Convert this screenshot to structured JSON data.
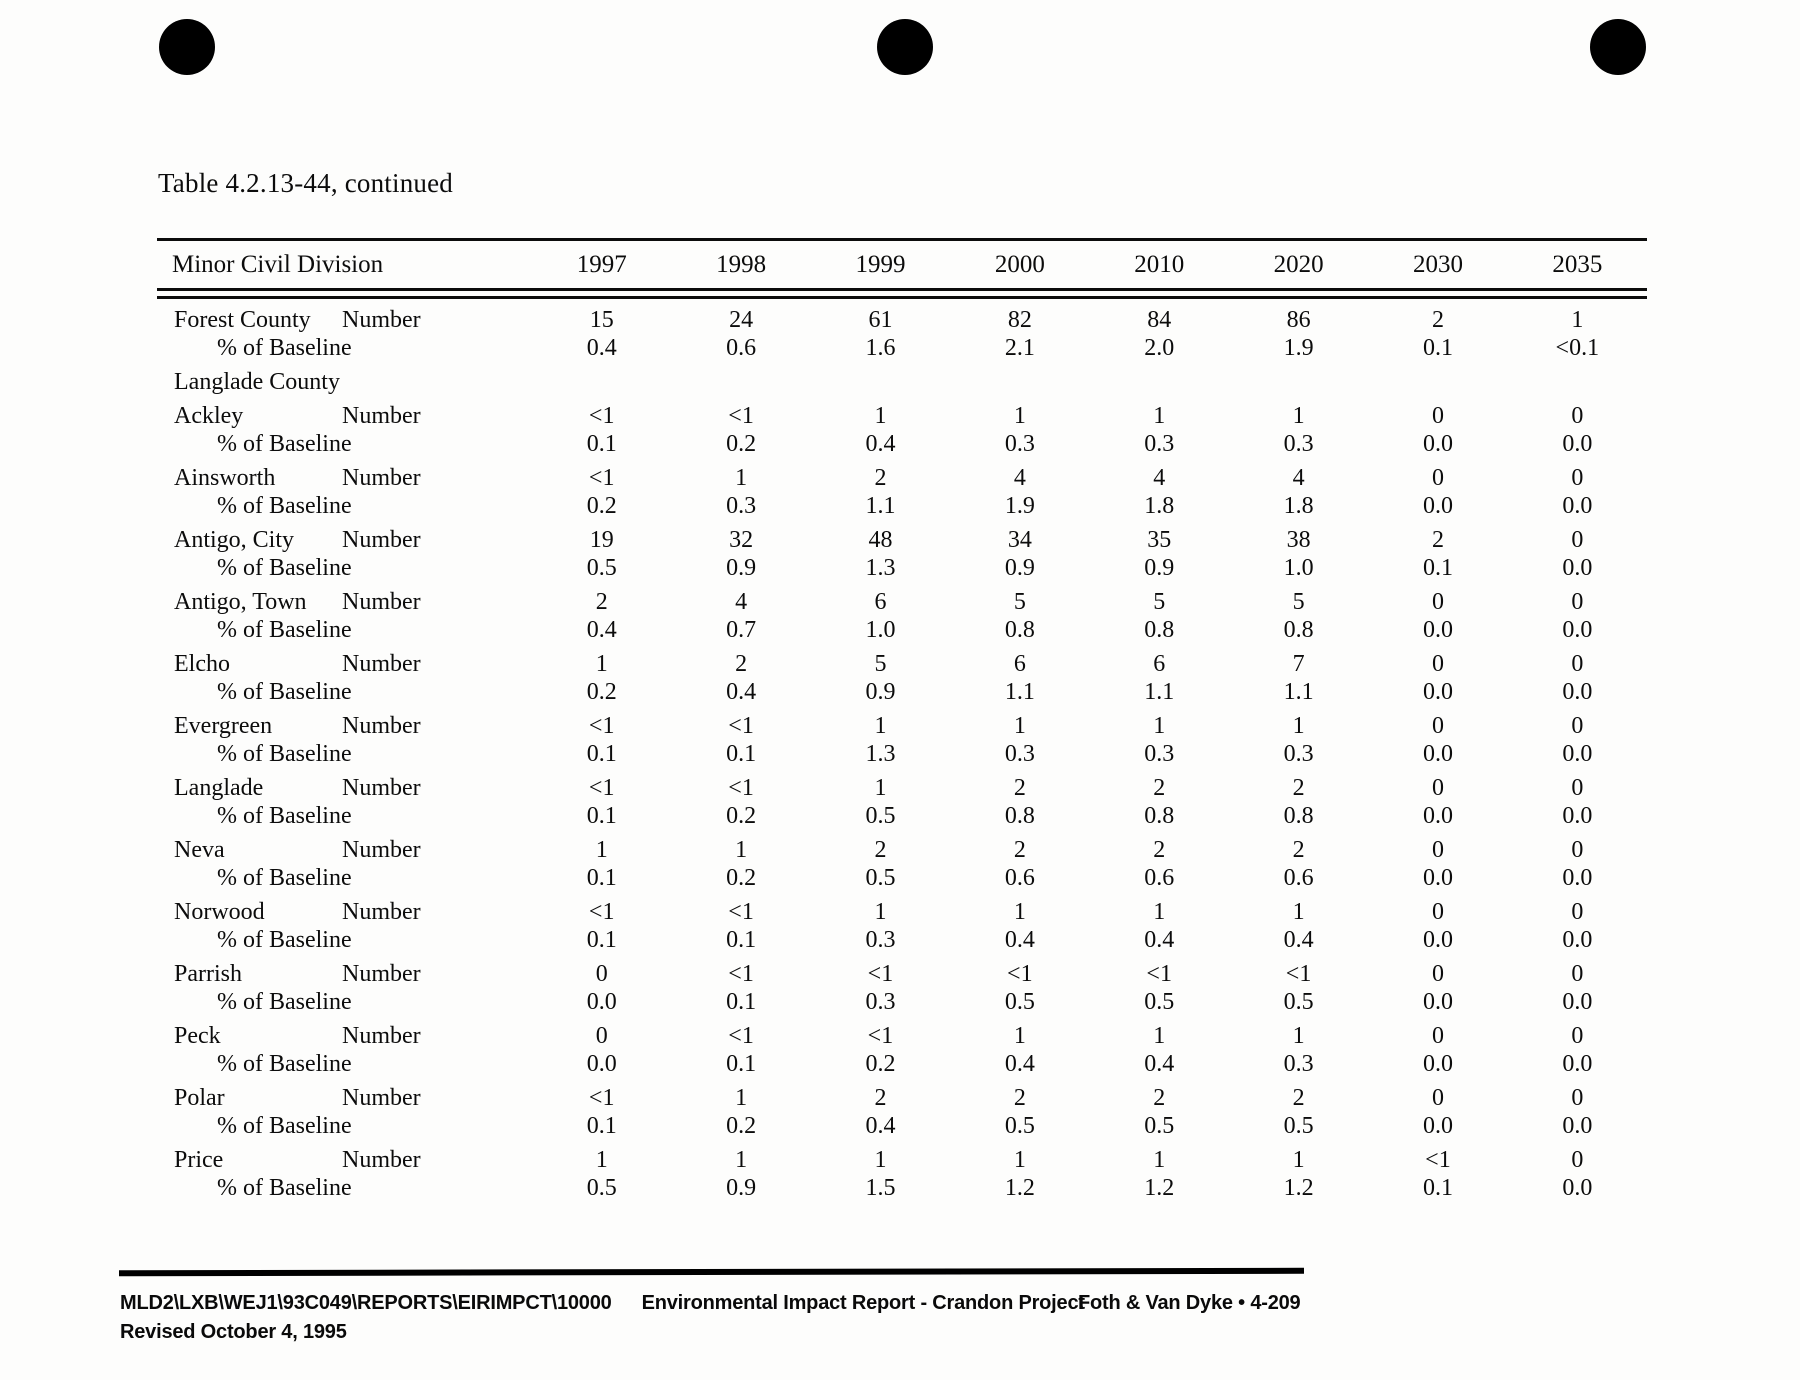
{
  "page": {
    "title": "Table 4.2.13-44, continued"
  },
  "table": {
    "header": {
      "label": "Minor Civil Division",
      "years": [
        "1997",
        "1998",
        "1999",
        "2000",
        "2010",
        "2020",
        "2030",
        "2035"
      ]
    },
    "row_labels": {
      "number": "Number",
      "pct": "% of Baseline"
    },
    "groups": [
      {
        "name": "Forest County",
        "type": "data",
        "number": [
          "15",
          "24",
          "61",
          "82",
          "84",
          "86",
          "2",
          "1"
        ],
        "pct": [
          "0.4",
          "0.6",
          "1.6",
          "2.1",
          "2.0",
          "1.9",
          "0.1",
          "<0.1"
        ]
      },
      {
        "name": "Langlade County",
        "type": "section"
      },
      {
        "name": "Ackley",
        "type": "data",
        "number": [
          "<1",
          "<1",
          "1",
          "1",
          "1",
          "1",
          "0",
          "0"
        ],
        "pct": [
          "0.1",
          "0.2",
          "0.4",
          "0.3",
          "0.3",
          "0.3",
          "0.0",
          "0.0"
        ]
      },
      {
        "name": "Ainsworth",
        "type": "data",
        "number": [
          "<1",
          "1",
          "2",
          "4",
          "4",
          "4",
          "0",
          "0"
        ],
        "pct": [
          "0.2",
          "0.3",
          "1.1",
          "1.9",
          "1.8",
          "1.8",
          "0.0",
          "0.0"
        ]
      },
      {
        "name": "Antigo, City",
        "type": "data",
        "number": [
          "19",
          "32",
          "48",
          "34",
          "35",
          "38",
          "2",
          "0"
        ],
        "pct": [
          "0.5",
          "0.9",
          "1.3",
          "0.9",
          "0.9",
          "1.0",
          "0.1",
          "0.0"
        ]
      },
      {
        "name": "Antigo, Town",
        "type": "data",
        "number": [
          "2",
          "4",
          "6",
          "5",
          "5",
          "5",
          "0",
          "0"
        ],
        "pct": [
          "0.4",
          "0.7",
          "1.0",
          "0.8",
          "0.8",
          "0.8",
          "0.0",
          "0.0"
        ]
      },
      {
        "name": "Elcho",
        "type": "data",
        "number": [
          "1",
          "2",
          "5",
          "6",
          "6",
          "7",
          "0",
          "0"
        ],
        "pct": [
          "0.2",
          "0.4",
          "0.9",
          "1.1",
          "1.1",
          "1.1",
          "0.0",
          "0.0"
        ]
      },
      {
        "name": "Evergreen",
        "type": "data",
        "number": [
          "<1",
          "<1",
          "1",
          "1",
          "1",
          "1",
          "0",
          "0"
        ],
        "pct": [
          "0.1",
          "0.1",
          "1.3",
          "0.3",
          "0.3",
          "0.3",
          "0.0",
          "0.0"
        ]
      },
      {
        "name": "Langlade",
        "type": "data",
        "number": [
          "<1",
          "<1",
          "1",
          "2",
          "2",
          "2",
          "0",
          "0"
        ],
        "pct": [
          "0.1",
          "0.2",
          "0.5",
          "0.8",
          "0.8",
          "0.8",
          "0.0",
          "0.0"
        ]
      },
      {
        "name": "Neva",
        "type": "data",
        "number": [
          "1",
          "1",
          "2",
          "2",
          "2",
          "2",
          "0",
          "0"
        ],
        "pct": [
          "0.1",
          "0.2",
          "0.5",
          "0.6",
          "0.6",
          "0.6",
          "0.0",
          "0.0"
        ]
      },
      {
        "name": "Norwood",
        "type": "data",
        "number": [
          "<1",
          "<1",
          "1",
          "1",
          "1",
          "1",
          "0",
          "0"
        ],
        "pct": [
          "0.1",
          "0.1",
          "0.3",
          "0.4",
          "0.4",
          "0.4",
          "0.0",
          "0.0"
        ]
      },
      {
        "name": "Parrish",
        "type": "data",
        "number": [
          "0",
          "<1",
          "<1",
          "<1",
          "<1",
          "<1",
          "0",
          "0"
        ],
        "pct": [
          "0.0",
          "0.1",
          "0.3",
          "0.5",
          "0.5",
          "0.5",
          "0.0",
          "0.0"
        ]
      },
      {
        "name": "Peck",
        "type": "data",
        "number": [
          "0",
          "<1",
          "<1",
          "1",
          "1",
          "1",
          "0",
          "0"
        ],
        "pct": [
          "0.0",
          "0.1",
          "0.2",
          "0.4",
          "0.4",
          "0.3",
          "0.0",
          "0.0"
        ]
      },
      {
        "name": "Polar",
        "type": "data",
        "number": [
          "<1",
          "1",
          "2",
          "2",
          "2",
          "2",
          "0",
          "0"
        ],
        "pct": [
          "0.1",
          "0.2",
          "0.4",
          "0.5",
          "0.5",
          "0.5",
          "0.0",
          "0.0"
        ]
      },
      {
        "name": "Price",
        "type": "data",
        "number": [
          "1",
          "1",
          "1",
          "1",
          "1",
          "1",
          "<1",
          "0"
        ],
        "pct": [
          "0.5",
          "0.9",
          "1.5",
          "1.2",
          "1.2",
          "1.2",
          "0.1",
          "0.0"
        ]
      }
    ]
  },
  "footer": {
    "file_path": "MLD2\\LXB\\WEJ1\\93C049\\REPORTS\\EIRIMPCT\\10000",
    "document_title": "Environmental Impact Report - Crandon Project",
    "publisher_page": "Foth & Van Dyke • 4-209",
    "revision": "Revised October 4, 1995"
  }
}
